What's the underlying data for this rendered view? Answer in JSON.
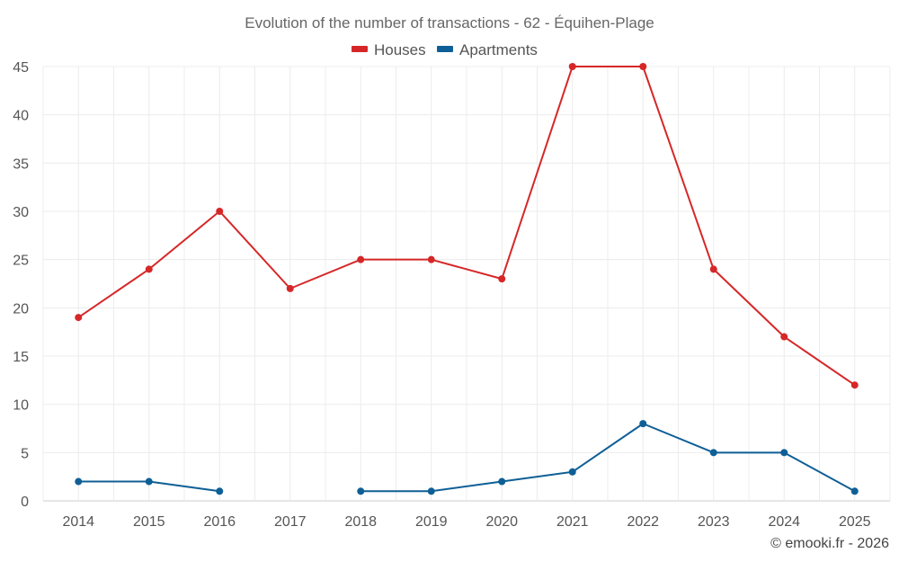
{
  "chart_data": {
    "type": "line",
    "title": "Evolution of the number of transactions - 62 - Équihen-Plage",
    "categories": [
      "2014",
      "2015",
      "2016",
      "2017",
      "2018",
      "2019",
      "2020",
      "2021",
      "2022",
      "2023",
      "2024",
      "2025"
    ],
    "ylim": [
      0,
      45
    ],
    "yticks": [
      0,
      5,
      10,
      15,
      20,
      25,
      30,
      35,
      40,
      45
    ],
    "grid": true,
    "legend_position": "top-center",
    "series": [
      {
        "name": "Houses",
        "color": "#d62728",
        "values": [
          19,
          24,
          30,
          22,
          25,
          25,
          23,
          45,
          45,
          24,
          17,
          12
        ]
      },
      {
        "name": "Apartments",
        "color": "#0e5f96",
        "values": [
          2,
          2,
          1,
          null,
          1,
          1,
          2,
          3,
          8,
          5,
          5,
          1
        ]
      }
    ]
  },
  "credit": "© emooki.fr - 2026"
}
